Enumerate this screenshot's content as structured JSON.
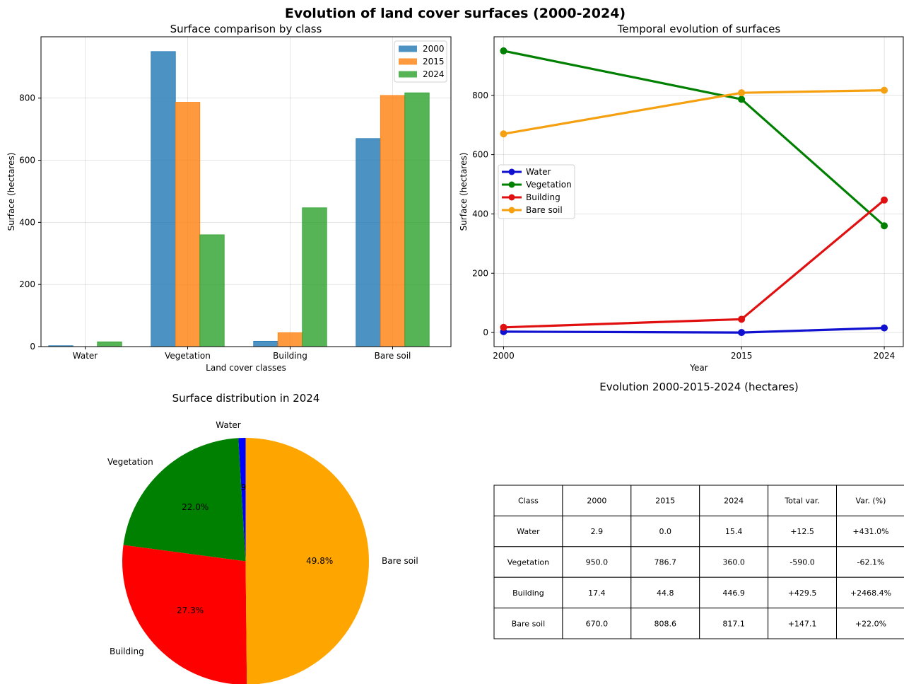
{
  "suptitle": "Evolution of land cover surfaces (2000-2024)",
  "colors": {
    "bar_2000": "#1f77b4",
    "bar_2015": "#ff7f0e",
    "bar_2024": "#2ca02c",
    "water": "#0000ff",
    "vegetation": "#008000",
    "building": "#ff0000",
    "bare_soil": "#ffa500",
    "line_water": "#1010d0",
    "line_building": "#e01010",
    "line_bare_soil": "#f5a010"
  },
  "chart_data": [
    {
      "type": "bar",
      "title": "Surface comparison by class",
      "xlabel": "Land cover classes",
      "ylabel": "Surface (hectares)",
      "categories": [
        "Water",
        "Vegetation",
        "Building",
        "Bare soil"
      ],
      "series": [
        {
          "name": "2000",
          "values": [
            2.9,
            950.0,
            17.4,
            670.0
          ]
        },
        {
          "name": "2015",
          "values": [
            0.0,
            786.7,
            44.8,
            808.6
          ]
        },
        {
          "name": "2024",
          "values": [
            15.4,
            360.0,
            446.9,
            817.1
          ]
        }
      ],
      "ylim": [
        0,
        997.5
      ],
      "yticks": [
        0,
        200,
        400,
        600,
        800
      ],
      "grid": true,
      "legend": "top-right"
    },
    {
      "type": "line",
      "title": "Temporal evolution of surfaces",
      "xlabel": "Year",
      "ylabel": "Surface (hectares)",
      "x": [
        2000,
        2015,
        2024
      ],
      "series": [
        {
          "name": "Water",
          "values": [
            2.9,
            0.0,
            15.4
          ]
        },
        {
          "name": "Vegetation",
          "values": [
            950.0,
            786.7,
            360.0
          ]
        },
        {
          "name": "Building",
          "values": [
            17.4,
            44.8,
            446.9
          ]
        },
        {
          "name": "Bare soil",
          "values": [
            670.0,
            808.6,
            817.1
          ]
        }
      ],
      "xlim": [
        1999.4,
        2025.2
      ],
      "ylim": [
        -47.5,
        997.5
      ],
      "yticks": [
        0,
        200,
        400,
        600,
        800
      ],
      "grid": true,
      "legend": "center-left"
    },
    {
      "type": "pie",
      "title": "Surface distribution in 2024",
      "labels": [
        "Water",
        "Vegetation",
        "Building",
        "Bare soil"
      ],
      "values": [
        15.4,
        360.0,
        446.9,
        817.1
      ],
      "pct_labels": [
        "0.9%",
        "22.0%",
        "27.3%",
        "49.8%"
      ]
    },
    {
      "type": "table",
      "title": "Evolution 2000-2015-2024 (hectares)",
      "columns": [
        "Class",
        "2000",
        "2015",
        "2024",
        "Total var.",
        "Var. (%)"
      ],
      "rows": [
        [
          "Water",
          "2.9",
          "0.0",
          "15.4",
          "+12.5",
          "+431.0%"
        ],
        [
          "Vegetation",
          "950.0",
          "786.7",
          "360.0",
          "-590.0",
          "-62.1%"
        ],
        [
          "Building",
          "17.4",
          "44.8",
          "446.9",
          "+429.5",
          "+2468.4%"
        ],
        [
          "Bare soil",
          "670.0",
          "808.6",
          "817.1",
          "+147.1",
          "+22.0%"
        ]
      ]
    }
  ]
}
